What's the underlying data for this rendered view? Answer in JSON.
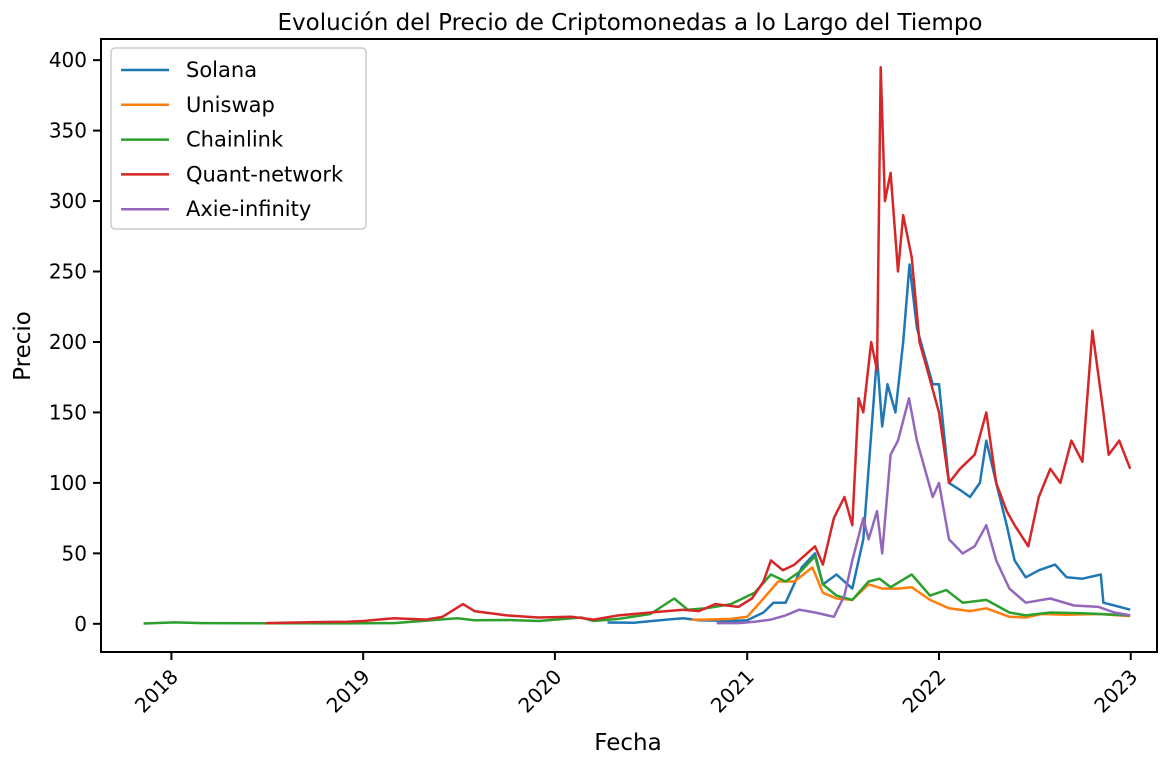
{
  "chart_data": {
    "type": "line",
    "title": "Evolución del Precio de Criptomonedas a lo Largo del Tiempo",
    "xlabel": "Fecha",
    "ylabel": "Precio",
    "xlim": [
      "2017-08-20",
      "2023-02-20"
    ],
    "ylim": [
      -20,
      415
    ],
    "x_ticks": [
      "2018",
      "2019",
      "2020",
      "2021",
      "2022",
      "2023"
    ],
    "y_ticks": [
      0,
      50,
      100,
      150,
      200,
      250,
      300,
      350,
      400
    ],
    "grid": false,
    "legend_position": "upper-left",
    "series": [
      {
        "name": "Solana",
        "color": "#1f77b4",
        "points": [
          [
            "2020-04-10",
            0.9
          ],
          [
            "2020-06-01",
            0.8
          ],
          [
            "2020-08-01",
            3
          ],
          [
            "2020-09-01",
            4
          ],
          [
            "2020-10-01",
            2.5
          ],
          [
            "2020-12-01",
            2
          ],
          [
            "2021-01-01",
            2.5
          ],
          [
            "2021-02-01",
            8
          ],
          [
            "2021-02-20",
            15
          ],
          [
            "2021-03-15",
            15
          ],
          [
            "2021-04-15",
            40
          ],
          [
            "2021-05-10",
            50
          ],
          [
            "2021-05-25",
            28
          ],
          [
            "2021-06-20",
            35
          ],
          [
            "2021-07-20",
            25
          ],
          [
            "2021-08-10",
            60
          ],
          [
            "2021-08-20",
            110
          ],
          [
            "2021-09-05",
            190
          ],
          [
            "2021-09-15",
            140
          ],
          [
            "2021-09-25",
            170
          ],
          [
            "2021-10-10",
            150
          ],
          [
            "2021-10-25",
            200
          ],
          [
            "2021-11-06",
            255
          ],
          [
            "2021-11-20",
            210
          ],
          [
            "2021-12-05",
            190
          ],
          [
            "2021-12-20",
            170
          ],
          [
            "2022-01-01",
            170
          ],
          [
            "2022-01-20",
            100
          ],
          [
            "2022-02-10",
            95
          ],
          [
            "2022-03-01",
            90
          ],
          [
            "2022-03-20",
            100
          ],
          [
            "2022-04-01",
            130
          ],
          [
            "2022-04-20",
            100
          ],
          [
            "2022-05-10",
            70
          ],
          [
            "2022-05-25",
            45
          ],
          [
            "2022-06-15",
            33
          ],
          [
            "2022-07-10",
            38
          ],
          [
            "2022-08-10",
            42
          ],
          [
            "2022-09-01",
            33
          ],
          [
            "2022-10-01",
            32
          ],
          [
            "2022-11-05",
            35
          ],
          [
            "2022-11-10",
            15
          ],
          [
            "2022-12-01",
            13
          ],
          [
            "2022-12-31",
            10
          ]
        ]
      },
      {
        "name": "Uniswap",
        "color": "#ff7f0e",
        "points": [
          [
            "2020-09-17",
            3
          ],
          [
            "2020-10-15",
            3
          ],
          [
            "2020-12-01",
            3.5
          ],
          [
            "2021-01-01",
            5
          ],
          [
            "2021-02-01",
            18
          ],
          [
            "2021-03-01",
            30
          ],
          [
            "2021-04-01",
            30
          ],
          [
            "2021-05-05",
            40
          ],
          [
            "2021-05-25",
            22
          ],
          [
            "2021-06-20",
            18
          ],
          [
            "2021-07-20",
            17
          ],
          [
            "2021-08-20",
            28
          ],
          [
            "2021-09-15",
            25
          ],
          [
            "2021-10-15",
            25
          ],
          [
            "2021-11-10",
            26
          ],
          [
            "2021-12-15",
            17
          ],
          [
            "2022-01-20",
            11
          ],
          [
            "2022-03-01",
            9
          ],
          [
            "2022-04-01",
            11
          ],
          [
            "2022-05-15",
            5
          ],
          [
            "2022-06-15",
            4.5
          ],
          [
            "2022-07-15",
            7
          ],
          [
            "2022-09-01",
            6.5
          ],
          [
            "2022-11-01",
            7
          ],
          [
            "2022-12-31",
            5.5
          ]
        ]
      },
      {
        "name": "Chainlink",
        "color": "#2ca02c",
        "points": [
          [
            "2017-11-09",
            0.2
          ],
          [
            "2018-01-07",
            1.0
          ],
          [
            "2018-03-01",
            0.5
          ],
          [
            "2018-06-01",
            0.4
          ],
          [
            "2018-12-01",
            0.3
          ],
          [
            "2019-03-01",
            0.5
          ],
          [
            "2019-06-29",
            4
          ],
          [
            "2019-08-01",
            2.5
          ],
          [
            "2019-10-01",
            2.7
          ],
          [
            "2019-12-01",
            2
          ],
          [
            "2020-02-20",
            4.5
          ],
          [
            "2020-03-15",
            2
          ],
          [
            "2020-05-01",
            3.5
          ],
          [
            "2020-07-01",
            7
          ],
          [
            "2020-08-15",
            18
          ],
          [
            "2020-09-10",
            10
          ],
          [
            "2020-10-15",
            11
          ],
          [
            "2020-12-01",
            14
          ],
          [
            "2021-01-15",
            22
          ],
          [
            "2021-02-15",
            35
          ],
          [
            "2021-03-15",
            30
          ],
          [
            "2021-04-15",
            38
          ],
          [
            "2021-05-10",
            48
          ],
          [
            "2021-05-25",
            28
          ],
          [
            "2021-06-20",
            20
          ],
          [
            "2021-07-20",
            17
          ],
          [
            "2021-08-20",
            30
          ],
          [
            "2021-09-10",
            32
          ],
          [
            "2021-10-01",
            26
          ],
          [
            "2021-11-10",
            35
          ],
          [
            "2021-12-15",
            20
          ],
          [
            "2022-01-15",
            24
          ],
          [
            "2022-02-15",
            15
          ],
          [
            "2022-04-01",
            17
          ],
          [
            "2022-05-15",
            8
          ],
          [
            "2022-06-15",
            6
          ],
          [
            "2022-08-01",
            8
          ],
          [
            "2022-10-01",
            7.5
          ],
          [
            "2022-12-31",
            6
          ]
        ]
      },
      {
        "name": "Quant-network",
        "color": "#d62728",
        "points": [
          [
            "2018-06-30",
            0.5
          ],
          [
            "2018-08-01",
            0.8
          ],
          [
            "2018-10-01",
            1.2
          ],
          [
            "2018-12-01",
            1.5
          ],
          [
            "2019-01-01",
            2
          ],
          [
            "2019-03-01",
            4
          ],
          [
            "2019-05-01",
            3
          ],
          [
            "2019-06-01",
            5
          ],
          [
            "2019-07-10",
            14
          ],
          [
            "2019-08-01",
            9
          ],
          [
            "2019-10-01",
            6
          ],
          [
            "2019-12-01",
            4.5
          ],
          [
            "2020-02-01",
            5
          ],
          [
            "2020-03-15",
            3
          ],
          [
            "2020-05-01",
            6
          ],
          [
            "2020-07-01",
            8
          ],
          [
            "2020-09-01",
            10
          ],
          [
            "2020-10-01",
            9
          ],
          [
            "2020-11-01",
            14
          ],
          [
            "2020-12-15",
            12
          ],
          [
            "2021-01-10",
            18
          ],
          [
            "2021-02-01",
            30
          ],
          [
            "2021-02-15",
            45
          ],
          [
            "2021-03-10",
            38
          ],
          [
            "2021-04-01",
            42
          ],
          [
            "2021-05-10",
            55
          ],
          [
            "2021-05-25",
            42
          ],
          [
            "2021-06-15",
            75
          ],
          [
            "2021-07-05",
            90
          ],
          [
            "2021-07-20",
            70
          ],
          [
            "2021-08-01",
            160
          ],
          [
            "2021-08-10",
            150
          ],
          [
            "2021-08-25",
            200
          ],
          [
            "2021-09-05",
            180
          ],
          [
            "2021-09-12",
            395
          ],
          [
            "2021-09-20",
            300
          ],
          [
            "2021-10-01",
            320
          ],
          [
            "2021-10-15",
            250
          ],
          [
            "2021-10-25",
            290
          ],
          [
            "2021-11-10",
            260
          ],
          [
            "2021-11-25",
            200
          ],
          [
            "2021-12-10",
            180
          ],
          [
            "2022-01-01",
            150
          ],
          [
            "2022-01-20",
            100
          ],
          [
            "2022-02-10",
            110
          ],
          [
            "2022-03-10",
            120
          ],
          [
            "2022-04-01",
            150
          ],
          [
            "2022-04-20",
            100
          ],
          [
            "2022-05-10",
            80
          ],
          [
            "2022-05-25",
            70
          ],
          [
            "2022-06-20",
            55
          ],
          [
            "2022-07-10",
            90
          ],
          [
            "2022-08-01",
            110
          ],
          [
            "2022-08-20",
            100
          ],
          [
            "2022-09-10",
            130
          ],
          [
            "2022-10-01",
            115
          ],
          [
            "2022-10-20",
            208
          ],
          [
            "2022-11-10",
            150
          ],
          [
            "2022-11-20",
            120
          ],
          [
            "2022-12-10",
            130
          ],
          [
            "2022-12-31",
            110
          ]
        ]
      },
      {
        "name": "Axie-infinity",
        "color": "#9467bd",
        "points": [
          [
            "2020-11-04",
            0.5
          ],
          [
            "2020-12-15",
            0.5
          ],
          [
            "2021-01-15",
            1.5
          ],
          [
            "2021-02-15",
            3
          ],
          [
            "2021-03-15",
            6
          ],
          [
            "2021-04-10",
            10
          ],
          [
            "2021-05-10",
            8
          ],
          [
            "2021-06-15",
            5
          ],
          [
            "2021-07-05",
            20
          ],
          [
            "2021-07-20",
            45
          ],
          [
            "2021-08-10",
            75
          ],
          [
            "2021-08-20",
            60
          ],
          [
            "2021-09-05",
            80
          ],
          [
            "2021-09-15",
            50
          ],
          [
            "2021-10-01",
            120
          ],
          [
            "2021-10-15",
            130
          ],
          [
            "2021-11-05",
            160
          ],
          [
            "2021-11-20",
            130
          ],
          [
            "2021-12-05",
            110
          ],
          [
            "2021-12-20",
            90
          ],
          [
            "2022-01-01",
            100
          ],
          [
            "2022-01-20",
            60
          ],
          [
            "2022-02-15",
            50
          ],
          [
            "2022-03-10",
            55
          ],
          [
            "2022-04-01",
            70
          ],
          [
            "2022-04-20",
            45
          ],
          [
            "2022-05-15",
            25
          ],
          [
            "2022-06-15",
            15
          ],
          [
            "2022-08-01",
            18
          ],
          [
            "2022-09-15",
            13
          ],
          [
            "2022-11-01",
            12
          ],
          [
            "2022-12-01",
            8
          ],
          [
            "2022-12-31",
            6
          ]
        ]
      }
    ]
  }
}
